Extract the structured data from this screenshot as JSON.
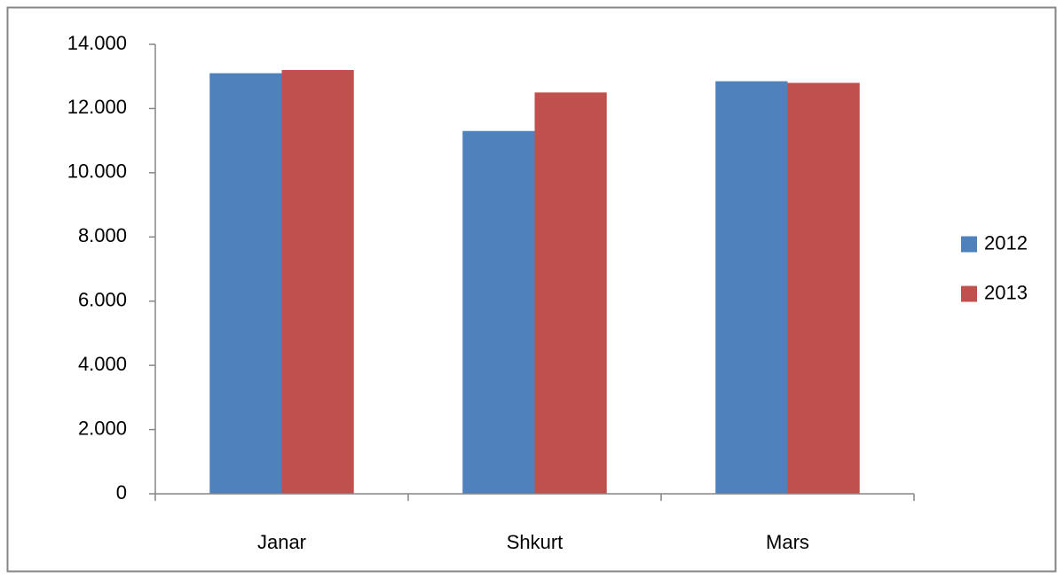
{
  "chart_data": {
    "type": "bar",
    "categories": [
      "Janar",
      "Shkurt",
      "Mars"
    ],
    "series": [
      {
        "name": "2012",
        "color": "#4f81bd",
        "values": [
          13100,
          11300,
          12850
        ]
      },
      {
        "name": "2013",
        "color": "#c0504d",
        "values": [
          13200,
          12500,
          12800
        ]
      }
    ],
    "ylim": [
      0,
      14000
    ],
    "yticks": [
      0,
      {
        "value": 2000,
        "label": "2.000"
      },
      {
        "value": 4000,
        "label": "4.000"
      },
      {
        "value": 6000,
        "label": "6.000"
      },
      {
        "value": 8000,
        "label": "8.000"
      },
      {
        "value": 10000,
        "label": "10.000"
      },
      {
        "value": 12000,
        "label": "12.000"
      },
      {
        "value": 14000,
        "label": "14.000"
      }
    ],
    "grid": false,
    "legend": "right"
  }
}
